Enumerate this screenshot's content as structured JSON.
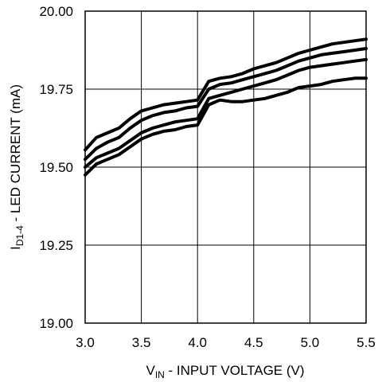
{
  "chart_data": {
    "type": "line",
    "xlabel": {
      "main": "V",
      "sub": "IN",
      "rest": " - INPUT VOLTAGE (V)"
    },
    "ylabel": {
      "main": "I",
      "sub": "D1-4",
      "rest": " - LED CURRENT (mA)"
    },
    "xlim": [
      3.0,
      5.5
    ],
    "ylim": [
      19.0,
      20.0
    ],
    "x_ticks": [
      "3.0",
      "3.5",
      "4.0",
      "4.5",
      "5.0",
      "5.5"
    ],
    "y_ticks": [
      "20.00",
      "19.75",
      "19.50",
      "19.25",
      "19.00"
    ],
    "grid": true,
    "line_color": "#000000",
    "series": [
      {
        "x": [
          3.0,
          3.1,
          3.2,
          3.3,
          3.4,
          3.5,
          3.6,
          3.7,
          3.8,
          3.9,
          4.0,
          4.1,
          4.2,
          4.3,
          4.4,
          4.5,
          4.6,
          4.7,
          4.8,
          4.9,
          5.0,
          5.1,
          5.2,
          5.3,
          5.4,
          5.5
        ],
        "values": [
          19.555,
          19.595,
          19.61,
          19.625,
          19.655,
          19.68,
          19.69,
          19.7,
          19.705,
          19.71,
          19.715,
          19.775,
          19.785,
          19.79,
          19.8,
          19.815,
          19.825,
          19.835,
          19.85,
          19.865,
          19.875,
          19.885,
          19.895,
          19.9,
          19.905,
          19.91
        ]
      },
      {
        "x": [
          3.0,
          3.1,
          3.2,
          3.3,
          3.4,
          3.5,
          3.6,
          3.7,
          3.8,
          3.9,
          4.0,
          4.1,
          4.2,
          4.3,
          4.4,
          4.5,
          4.6,
          4.7,
          4.8,
          4.9,
          5.0,
          5.1,
          5.2,
          5.3,
          5.4,
          5.5
        ],
        "values": [
          19.525,
          19.56,
          19.58,
          19.595,
          19.625,
          19.65,
          19.665,
          19.675,
          19.68,
          19.69,
          19.695,
          19.75,
          19.765,
          19.77,
          19.78,
          19.79,
          19.8,
          19.81,
          19.825,
          19.84,
          19.85,
          19.86,
          19.865,
          19.87,
          19.875,
          19.88
        ]
      },
      {
        "x": [
          3.0,
          3.1,
          3.2,
          3.3,
          3.4,
          3.5,
          3.6,
          3.7,
          3.8,
          3.9,
          4.0,
          4.1,
          4.2,
          4.3,
          4.4,
          4.5,
          4.6,
          4.7,
          4.8,
          4.9,
          5.0,
          5.1,
          5.2,
          5.3,
          5.4,
          5.5
        ],
        "values": [
          19.5,
          19.53,
          19.545,
          19.56,
          19.585,
          19.61,
          19.625,
          19.635,
          19.645,
          19.65,
          19.655,
          19.72,
          19.73,
          19.74,
          19.75,
          19.76,
          19.77,
          19.78,
          19.795,
          19.81,
          19.82,
          19.825,
          19.83,
          19.835,
          19.84,
          19.845
        ]
      },
      {
        "x": [
          3.0,
          3.1,
          3.2,
          3.3,
          3.4,
          3.5,
          3.6,
          3.7,
          3.8,
          3.9,
          4.0,
          4.1,
          4.2,
          4.3,
          4.4,
          4.5,
          4.6,
          4.7,
          4.8,
          4.9,
          5.0,
          5.1,
          5.2,
          5.3,
          5.4,
          5.5
        ],
        "values": [
          19.475,
          19.51,
          19.525,
          19.54,
          19.565,
          19.59,
          19.605,
          19.615,
          19.62,
          19.63,
          19.635,
          19.7,
          19.715,
          19.71,
          19.71,
          19.715,
          19.72,
          19.73,
          19.74,
          19.755,
          19.76,
          19.765,
          19.775,
          19.78,
          19.785,
          19.785
        ]
      }
    ]
  }
}
